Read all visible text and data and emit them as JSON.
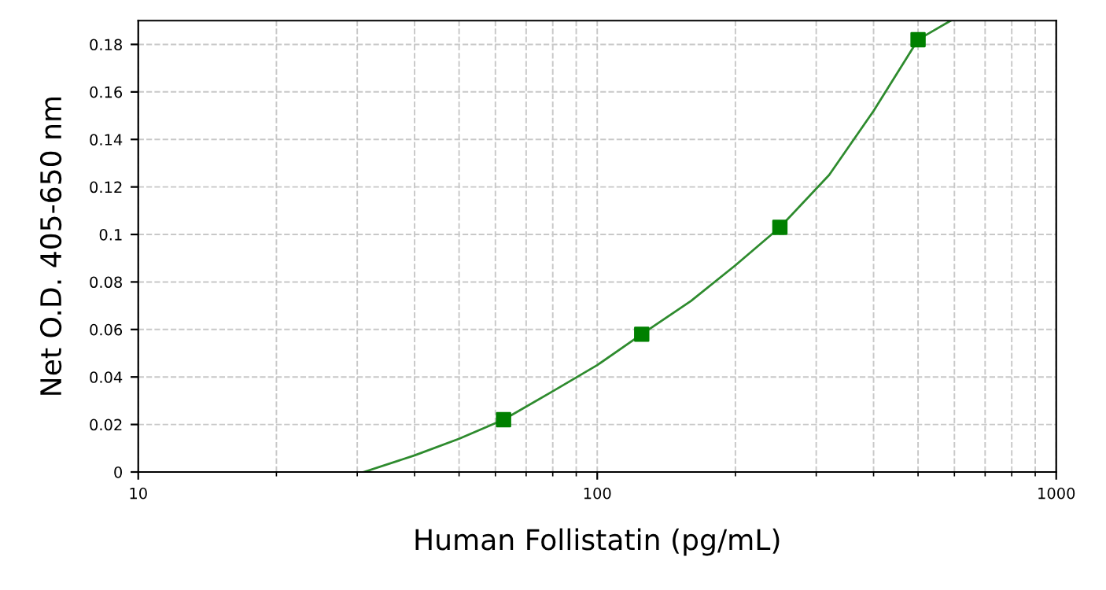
{
  "chart_data": {
    "type": "scatter",
    "xlabel": "Human Follistatin (pg/mL)",
    "ylabel": "Net O.D. 405-650 nm",
    "log": "x",
    "grid": true,
    "xlim": [
      10,
      1000
    ],
    "xticks": [
      10,
      100,
      1000
    ],
    "ylim": [
      0,
      0.19
    ],
    "yticks": [
      0,
      0.02,
      0.04,
      0.06,
      0.08,
      0.1,
      0.12,
      0.14,
      0.16,
      0.18
    ],
    "series": [
      {
        "marker": "square",
        "color": "#008000",
        "x": [
          62.5,
          125,
          250,
          500
        ],
        "values": [
          0.022,
          0.058,
          0.103,
          0.182
        ]
      },
      {
        "type": "line",
        "marker": "none",
        "line_style": "solid",
        "color": "#2e8b2e",
        "x": [
          31,
          40,
          50,
          62.5,
          80,
          100,
          125,
          160,
          200,
          250,
          320,
          400,
          500,
          589
        ],
        "values": [
          0,
          0.007,
          0.014,
          0.022,
          0.034,
          0.045,
          0.058,
          0.072,
          0.087,
          0.103,
          0.125,
          0.152,
          0.182,
          0.19
        ]
      }
    ]
  }
}
